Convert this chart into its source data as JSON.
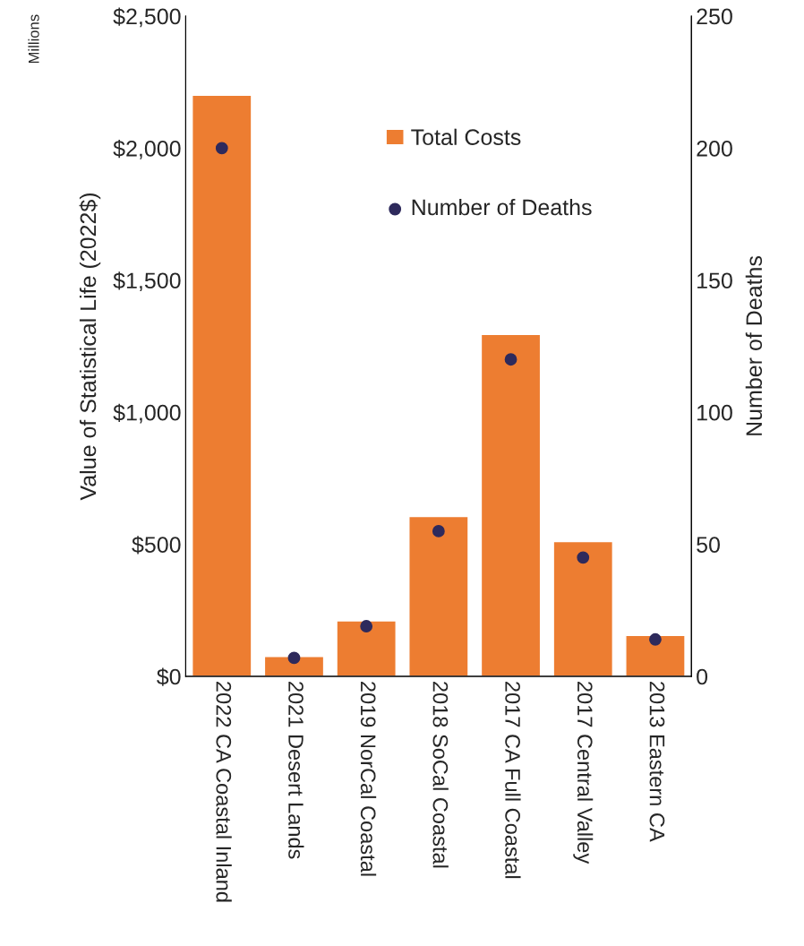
{
  "chart_data": {
    "type": "bar",
    "ylabel": "Value of Statistical Life (2022$)",
    "y2label": "Number of Deaths",
    "annotations": [
      "Millions"
    ],
    "categories": [
      "2022 CA Coastal Inland",
      "2021 Desert Lands",
      "2019 NorCal Coastal",
      "2018 SoCal Coastal",
      "2017 CA Full Coastal",
      "2017 Central Valley",
      "2013 Eastern CA"
    ],
    "series": [
      {
        "name": "Total Costs",
        "color": "#ed7d31",
        "values": [
          2200,
          75,
          210,
          605,
          1295,
          510,
          155
        ]
      },
      {
        "name": "Number of Deaths",
        "type": "scatter",
        "axis": "y2",
        "color": "#2e2a5c",
        "values": [
          200,
          7,
          19,
          55,
          120,
          45,
          14
        ]
      }
    ],
    "ylim": [
      0,
      2500
    ],
    "yticks": [
      {
        "value": 0,
        "label": "$0"
      },
      {
        "value": 500,
        "label": "$500"
      },
      {
        "value": 1000,
        "label": "$1,000"
      },
      {
        "value": 1500,
        "label": "$1,500"
      },
      {
        "value": 2000,
        "label": "$2,000"
      },
      {
        "value": 2500,
        "label": "$2,500"
      }
    ],
    "y2lim": [
      0,
      250
    ],
    "y2ticks": [
      0,
      50,
      100,
      150,
      200,
      250
    ],
    "grid": false,
    "legend": "top",
    "marker": "circle"
  }
}
